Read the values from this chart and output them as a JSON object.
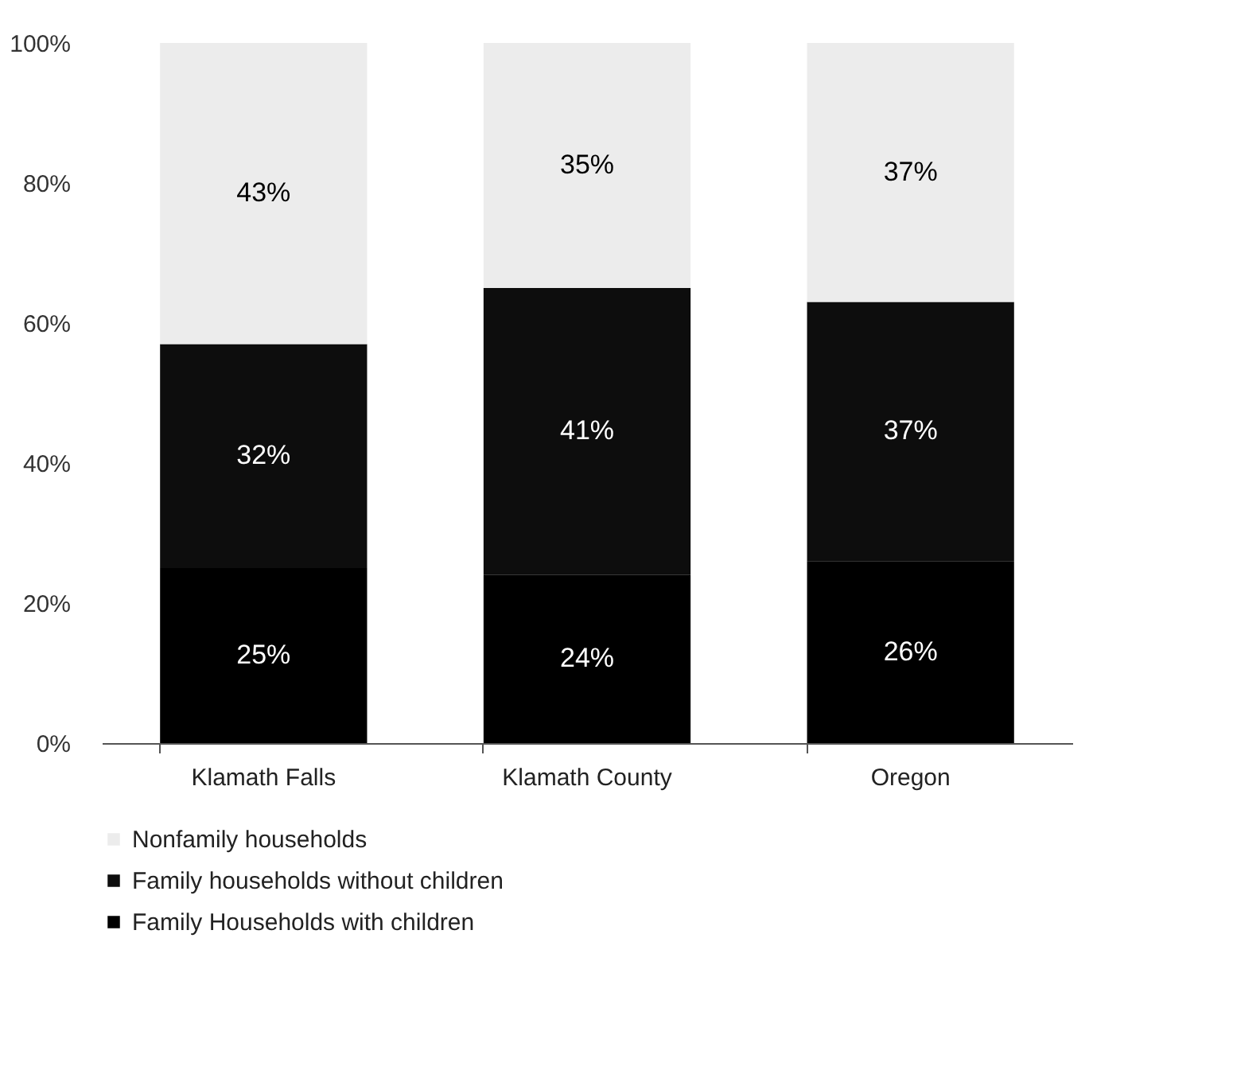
{
  "chart_data": {
    "type": "bar",
    "stacked": true,
    "categories": [
      "Klamath Falls",
      "Klamath County",
      "Oregon"
    ],
    "series": [
      {
        "name": "Family Households with children",
        "color": "#000000",
        "values": [
          25,
          24,
          26
        ],
        "value_labels": [
          "25%",
          "24%",
          "26%"
        ]
      },
      {
        "name": "Family households without children",
        "color": "#0d0d0d",
        "values": [
          32,
          41,
          37
        ],
        "value_labels": [
          "32%",
          "41%",
          "37%"
        ]
      },
      {
        "name": "Nonfamily households",
        "color": "#ececec",
        "values": [
          43,
          35,
          37
        ],
        "value_labels": [
          "43%",
          "35%",
          "37%"
        ]
      }
    ],
    "ylim": [
      0,
      100
    ],
    "yticks": [
      {
        "value": 0,
        "label": "0%"
      },
      {
        "value": 20,
        "label": "20%"
      },
      {
        "value": 40,
        "label": "40%"
      },
      {
        "value": 60,
        "label": "60%"
      },
      {
        "value": 80,
        "label": "80%"
      },
      {
        "value": 100,
        "label": "100%"
      }
    ],
    "grid": false,
    "legend": "bottom"
  }
}
